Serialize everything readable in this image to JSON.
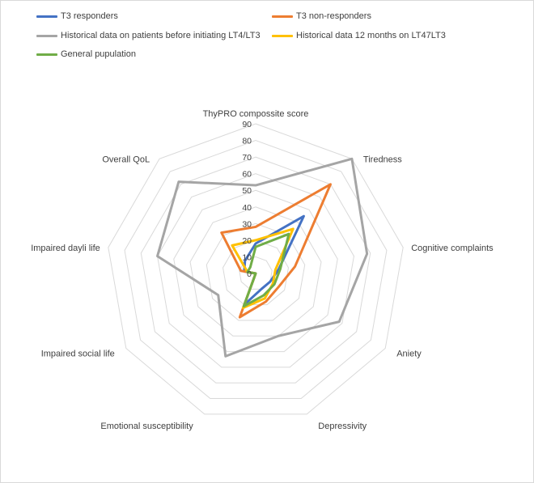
{
  "chart_data": {
    "type": "radar",
    "title": "",
    "axes": [
      "ThyPRO compossite score",
      "Tiredness",
      "Cognitive complaints",
      "Aniety",
      "Depressivity",
      "Emotional susceptibility",
      "Impaired social life",
      "Impaired dayli life",
      "Overall QoL"
    ],
    "rlim": [
      0,
      90
    ],
    "ticks": [
      0,
      10,
      20,
      30,
      40,
      50,
      60,
      70,
      80,
      90
    ],
    "grid": true,
    "legend_position": "top",
    "series": [
      {
        "name": "T3 responders",
        "color": "#4472c4",
        "values": [
          18,
          45,
          14,
          10,
          10,
          20,
          0,
          7,
          10
        ]
      },
      {
        "name": "T3 non-responders",
        "color": "#ed7d31",
        "values": [
          28,
          70,
          24,
          16,
          18,
          28,
          0,
          9,
          32
        ]
      },
      {
        "name": "Historical data on patients before initiating LT4/LT3",
        "color": "#a5a5a5",
        "values": [
          53,
          90,
          68,
          58,
          40,
          53,
          26,
          60,
          72
        ]
      },
      {
        "name": "Historical data 12 months on LT47LT3",
        "color": "#ffc000",
        "values": [
          20,
          35,
          12,
          12,
          16,
          22,
          0,
          5,
          22
        ]
      },
      {
        "name": "General pupulation",
        "color": "#70ad47",
        "values": [
          16,
          31,
          15,
          13,
          14,
          21,
          0,
          5,
          5
        ]
      }
    ]
  }
}
